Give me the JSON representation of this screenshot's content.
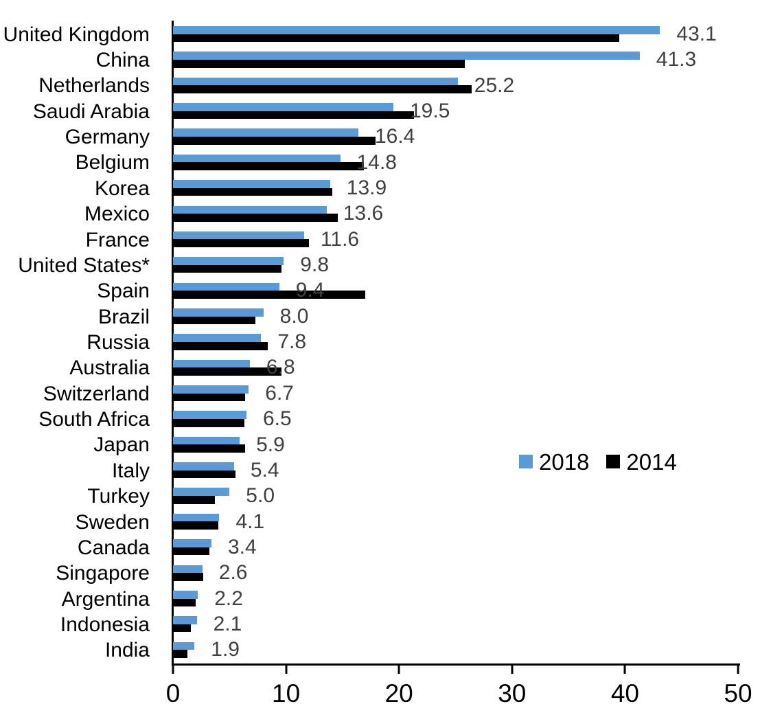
{
  "chart_data": {
    "type": "bar",
    "orientation": "horizontal",
    "title": "",
    "categories": [
      "United Kingdom",
      "China",
      "Netherlands",
      "Saudi Arabia",
      "Germany",
      "Belgium",
      "Korea",
      "Mexico",
      "France",
      "United States*",
      "Spain",
      "Brazil",
      "Russia",
      "Australia",
      "Switzerland",
      "South Africa",
      "Japan",
      "Italy",
      "Turkey",
      "Sweden",
      "Canada",
      "Singapore",
      "Argentina",
      "Indonesia",
      "India"
    ],
    "series": [
      {
        "name": "2018",
        "color": "#5B9BD5",
        "values": [
          43.1,
          41.3,
          25.2,
          19.5,
          16.4,
          14.8,
          13.9,
          13.6,
          11.6,
          9.8,
          9.4,
          8.0,
          7.8,
          6.8,
          6.7,
          6.5,
          5.9,
          5.4,
          5.0,
          4.1,
          3.4,
          2.6,
          2.2,
          2.1,
          1.9
        ]
      },
      {
        "name": "2014",
        "color": "#000000",
        "values": [
          39.5,
          25.8,
          26.4,
          21.3,
          17.9,
          16.9,
          14.1,
          14.6,
          12.0,
          9.6,
          17.0,
          7.3,
          8.4,
          9.6,
          6.4,
          6.3,
          6.4,
          5.5,
          3.7,
          4.0,
          3.2,
          2.7,
          2.0,
          1.6,
          1.3
        ]
      }
    ],
    "data_labels": [
      "43.1",
      "41.3",
      "25.2",
      "19.5",
      "16.4",
      "14.8",
      "13.9",
      "13.6",
      "11.6",
      "9.8",
      "9.4",
      "8.0",
      "7.8",
      "6.8",
      "6.7",
      "6.5",
      "5.9",
      "5.4",
      "5.0",
      "4.1",
      "3.4",
      "2.6",
      "2.2",
      "2.1",
      "1.9"
    ],
    "data_label_series": "2018",
    "value_label_color": "#404040",
    "xlim": [
      0,
      50
    ],
    "x_ticks": [
      "0",
      "10",
      "20",
      "30",
      "40",
      "50"
    ],
    "grid": false,
    "legend": {
      "position": "middle-right",
      "entries": [
        "2018",
        "2014"
      ]
    }
  }
}
